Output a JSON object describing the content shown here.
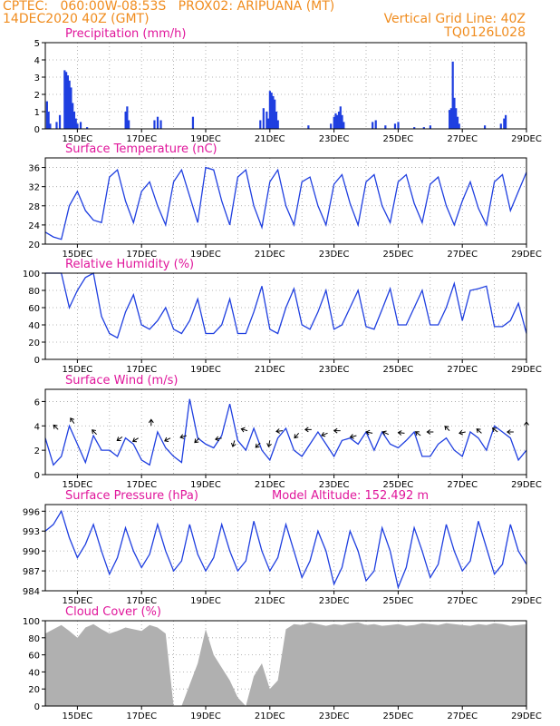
{
  "header": {
    "line1_left": "CPTEC:   060:00W-08:53S   PROX02: ARIPUANA (MT)",
    "line2_left": "14DEC2020 40Z (GMT)",
    "line2_right": "Vertical Grid Line: 40Z",
    "line3_right": "TQ0126L028"
  },
  "colors": {
    "header": "#f08c1e",
    "title": "#e0169b",
    "series": "#1f3fe0",
    "cloud": "#b0b0b0",
    "grid": "#a0a0a0",
    "arrow": "#000000"
  },
  "x_tick_labels": [
    "15DEC",
    "17DEC",
    "19DEC",
    "21DEC",
    "23DEC",
    "25DEC",
    "27DEC",
    "29DEC"
  ],
  "chart_data": [
    {
      "id": "precip",
      "type": "bar",
      "title": "Precipitation (mm/h)",
      "ylim": [
        0,
        5
      ],
      "yticks": [
        0,
        1,
        2,
        3,
        4,
        5
      ],
      "xlim": [
        14.0,
        29.0
      ],
      "points": [
        [
          14.05,
          1.6
        ],
        [
          14.1,
          1.0
        ],
        [
          14.15,
          0.3
        ],
        [
          14.35,
          0.4
        ],
        [
          14.45,
          0.8
        ],
        [
          14.6,
          3.4
        ],
        [
          14.65,
          3.3
        ],
        [
          14.7,
          3.1
        ],
        [
          14.75,
          2.8
        ],
        [
          14.8,
          2.4
        ],
        [
          14.85,
          1.5
        ],
        [
          14.9,
          1.0
        ],
        [
          14.95,
          0.6
        ],
        [
          15.0,
          0.3
        ],
        [
          15.1,
          0.4
        ],
        [
          15.3,
          0.1
        ],
        [
          16.5,
          1.0
        ],
        [
          16.55,
          1.3
        ],
        [
          16.6,
          0.5
        ],
        [
          17.4,
          0.5
        ],
        [
          17.5,
          0.7
        ],
        [
          17.6,
          0.5
        ],
        [
          18.6,
          0.7
        ],
        [
          20.7,
          0.5
        ],
        [
          20.8,
          1.2
        ],
        [
          20.9,
          1.0
        ],
        [
          20.95,
          0.6
        ],
        [
          21.0,
          2.2
        ],
        [
          21.05,
          2.1
        ],
        [
          21.1,
          1.9
        ],
        [
          21.15,
          1.7
        ],
        [
          21.2,
          1.0
        ],
        [
          21.25,
          0.5
        ],
        [
          22.2,
          0.2
        ],
        [
          22.9,
          0.3
        ],
        [
          23.0,
          0.7
        ],
        [
          23.05,
          0.9
        ],
        [
          23.1,
          0.8
        ],
        [
          23.15,
          1.0
        ],
        [
          23.2,
          1.3
        ],
        [
          23.25,
          0.8
        ],
        [
          23.3,
          0.4
        ],
        [
          24.2,
          0.4
        ],
        [
          24.3,
          0.5
        ],
        [
          24.6,
          0.2
        ],
        [
          24.9,
          0.3
        ],
        [
          25.0,
          0.4
        ],
        [
          25.5,
          0.1
        ],
        [
          25.8,
          0.1
        ],
        [
          26.0,
          0.2
        ],
        [
          26.6,
          1.1
        ],
        [
          26.65,
          1.2
        ],
        [
          26.7,
          3.9
        ],
        [
          26.75,
          1.8
        ],
        [
          26.8,
          1.2
        ],
        [
          26.85,
          0.7
        ],
        [
          26.9,
          0.3
        ],
        [
          27.7,
          0.2
        ],
        [
          28.2,
          0.3
        ],
        [
          28.3,
          0.6
        ],
        [
          28.35,
          0.8
        ]
      ]
    },
    {
      "id": "temp",
      "type": "line",
      "title": "Surface Temperature (nC)",
      "ylim": [
        20,
        38
      ],
      "yticks": [
        20,
        24,
        28,
        32,
        36
      ],
      "xlim": [
        14.0,
        29.0
      ],
      "x": [
        14.0,
        14.25,
        14.5,
        14.75,
        15.0,
        15.25,
        15.5,
        15.75,
        16.0,
        16.25,
        16.5,
        16.75,
        17.0,
        17.25,
        17.5,
        17.75,
        18.0,
        18.25,
        18.5,
        18.75,
        19.0,
        19.25,
        19.5,
        19.75,
        20.0,
        20.25,
        20.5,
        20.75,
        21.0,
        21.25,
        21.5,
        21.75,
        22.0,
        22.25,
        22.5,
        22.75,
        23.0,
        23.25,
        23.5,
        23.75,
        24.0,
        24.25,
        24.5,
        24.75,
        25.0,
        25.25,
        25.5,
        25.75,
        26.0,
        26.25,
        26.5,
        26.75,
        27.0,
        27.25,
        27.5,
        27.75,
        28.0,
        28.25,
        28.5,
        28.75,
        29.0
      ],
      "y": [
        22.5,
        21.5,
        21.0,
        28.0,
        31.0,
        27.0,
        25.0,
        24.5,
        34.0,
        35.5,
        29.0,
        24.5,
        31.0,
        33.0,
        28.0,
        24.0,
        33.0,
        35.5,
        30.0,
        24.5,
        36.0,
        35.5,
        29.0,
        24.0,
        34.0,
        35.5,
        28.0,
        23.5,
        33.0,
        35.5,
        28.0,
        24.0,
        33.0,
        34.0,
        28.0,
        24.0,
        32.5,
        34.5,
        28.5,
        24.0,
        33.0,
        34.5,
        28.0,
        24.5,
        33.0,
        34.5,
        28.5,
        24.5,
        32.5,
        34.0,
        28.0,
        24.0,
        29.0,
        33.0,
        27.5,
        24.0,
        33.0,
        34.5,
        27.0,
        31.0,
        35.0
      ]
    },
    {
      "id": "rh",
      "type": "line",
      "title": "Relative Humidity (%)",
      "ylim": [
        0,
        100
      ],
      "yticks": [
        0,
        20,
        40,
        60,
        80,
        100
      ],
      "xlim": [
        14.0,
        29.0
      ],
      "x": [
        14.0,
        14.25,
        14.5,
        14.75,
        15.0,
        15.25,
        15.5,
        15.75,
        16.0,
        16.25,
        16.5,
        16.75,
        17.0,
        17.25,
        17.5,
        17.75,
        18.0,
        18.25,
        18.5,
        18.75,
        19.0,
        19.25,
        19.5,
        19.75,
        20.0,
        20.25,
        20.5,
        20.75,
        21.0,
        21.25,
        21.5,
        21.75,
        22.0,
        22.25,
        22.5,
        22.75,
        23.0,
        23.25,
        23.5,
        23.75,
        24.0,
        24.25,
        24.5,
        24.75,
        25.0,
        25.25,
        25.5,
        25.75,
        26.0,
        26.25,
        26.5,
        26.75,
        27.0,
        27.25,
        27.5,
        27.75,
        28.0,
        28.25,
        28.5,
        28.75,
        29.0
      ],
      "y": [
        100,
        100,
        100,
        60,
        80,
        95,
        100,
        50,
        30,
        25,
        55,
        75,
        40,
        35,
        45,
        60,
        35,
        30,
        45,
        70,
        30,
        30,
        40,
        70,
        30,
        30,
        55,
        85,
        35,
        30,
        60,
        82,
        40,
        35,
        55,
        80,
        35,
        40,
        60,
        80,
        38,
        35,
        58,
        82,
        40,
        40,
        60,
        80,
        40,
        40,
        60,
        88,
        45,
        80,
        82,
        85,
        38,
        38,
        45,
        65,
        30
      ]
    },
    {
      "id": "wind",
      "type": "line",
      "title": "Surface Wind (m/s)",
      "ylim": [
        0,
        7
      ],
      "yticks": [
        0,
        2,
        4,
        6
      ],
      "xlim": [
        14.0,
        29.0
      ],
      "x": [
        14.0,
        14.25,
        14.5,
        14.75,
        15.0,
        15.25,
        15.5,
        15.75,
        16.0,
        16.25,
        16.5,
        16.75,
        17.0,
        17.25,
        17.5,
        17.75,
        18.0,
        18.25,
        18.5,
        18.75,
        19.0,
        19.25,
        19.5,
        19.75,
        20.0,
        20.25,
        20.5,
        20.75,
        21.0,
        21.25,
        21.5,
        21.75,
        22.0,
        22.25,
        22.5,
        22.75,
        23.0,
        23.25,
        23.5,
        23.75,
        24.0,
        24.25,
        24.5,
        24.75,
        25.0,
        25.25,
        25.5,
        25.75,
        26.0,
        26.25,
        26.5,
        26.75,
        27.0,
        27.25,
        27.5,
        27.75,
        28.0,
        28.25,
        28.5,
        28.75,
        29.0
      ],
      "y": [
        3.0,
        0.8,
        1.5,
        4.0,
        2.5,
        1.0,
        3.2,
        2.0,
        2.0,
        1.5,
        3.0,
        2.5,
        1.2,
        0.8,
        3.5,
        2.2,
        1.5,
        1.0,
        6.2,
        3.0,
        2.5,
        2.2,
        3.2,
        5.8,
        2.8,
        2.0,
        3.8,
        2.0,
        1.2,
        3.0,
        3.8,
        2.0,
        1.5,
        2.5,
        3.5,
        2.5,
        1.5,
        2.8,
        3.0,
        2.5,
        3.5,
        2.0,
        3.5,
        2.5,
        2.2,
        2.8,
        3.5,
        1.5,
        1.5,
        2.5,
        3.0,
        2.0,
        1.5,
        3.5,
        3.0,
        2.0,
        4.0,
        3.5,
        3.0,
        1.2,
        2.0
      ],
      "arrows": [
        [
          14.4,
          3.7,
          -1,
          1
        ],
        [
          14.9,
          4.2,
          -0.7,
          1
        ],
        [
          15.6,
          3.3,
          -0.8,
          0.8
        ],
        [
          16.4,
          3.1,
          -0.7,
          -0.5
        ],
        [
          16.9,
          3.0,
          -0.8,
          -0.5
        ],
        [
          17.3,
          4.0,
          0,
          1
        ],
        [
          17.9,
          3.0,
          -0.8,
          -0.4
        ],
        [
          18.4,
          3.2,
          -1,
          -0.3
        ],
        [
          18.8,
          3.0,
          -0.6,
          -0.6
        ],
        [
          19.5,
          3.0,
          -1,
          -0.2
        ],
        [
          19.9,
          2.8,
          -0.3,
          -1
        ],
        [
          20.3,
          3.6,
          -1,
          0.3
        ],
        [
          20.7,
          2.6,
          -0.7,
          -0.7
        ],
        [
          21.0,
          2.8,
          -0.2,
          -1
        ],
        [
          21.4,
          3.6,
          -1,
          -0.1
        ],
        [
          21.9,
          3.4,
          -0.7,
          -0.8
        ],
        [
          22.3,
          3.7,
          -1,
          0
        ],
        [
          22.8,
          3.4,
          -0.8,
          -0.3
        ],
        [
          23.2,
          3.6,
          -1,
          0
        ],
        [
          23.7,
          3.2,
          -0.8,
          -0.2
        ],
        [
          24.2,
          3.4,
          -1,
          0.2
        ],
        [
          24.7,
          3.3,
          -0.9,
          0.4
        ],
        [
          25.2,
          3.4,
          -1,
          0.1
        ],
        [
          25.7,
          3.2,
          -0.8,
          0.6
        ],
        [
          26.1,
          3.5,
          -1,
          0
        ],
        [
          26.6,
          3.6,
          -0.7,
          0.7
        ],
        [
          27.1,
          3.5,
          -1,
          -0.2
        ],
        [
          27.6,
          3.4,
          -0.8,
          0.7
        ],
        [
          28.1,
          3.5,
          -0.8,
          0.6
        ],
        [
          28.6,
          3.5,
          -1,
          0
        ],
        [
          29.0,
          3.8,
          0,
          1
        ]
      ]
    },
    {
      "id": "press",
      "type": "line",
      "title": "Surface Pressure (hPa)",
      "annotation": "Model Altitude: 152.492  m",
      "ylim": [
        984,
        997
      ],
      "yticks": [
        984,
        987,
        990,
        993,
        996
      ],
      "xlim": [
        14.0,
        29.0
      ],
      "x": [
        14.0,
        14.25,
        14.5,
        14.75,
        15.0,
        15.25,
        15.5,
        15.75,
        16.0,
        16.25,
        16.5,
        16.75,
        17.0,
        17.25,
        17.5,
        17.75,
        18.0,
        18.25,
        18.5,
        18.75,
        19.0,
        19.25,
        19.5,
        19.75,
        20.0,
        20.25,
        20.5,
        20.75,
        21.0,
        21.25,
        21.5,
        21.75,
        22.0,
        22.25,
        22.5,
        22.75,
        23.0,
        23.25,
        23.5,
        23.75,
        24.0,
        24.25,
        24.5,
        24.75,
        25.0,
        25.25,
        25.5,
        25.75,
        26.0,
        26.25,
        26.5,
        26.75,
        27.0,
        27.25,
        27.5,
        27.75,
        28.0,
        28.25,
        28.5,
        28.75,
        29.0
      ],
      "y": [
        993.0,
        994.0,
        996.0,
        992.0,
        989.0,
        991.0,
        994.0,
        990.0,
        986.5,
        989.0,
        993.5,
        990.0,
        987.5,
        989.5,
        994.0,
        990.0,
        987.0,
        988.5,
        994.0,
        989.5,
        987.0,
        989.0,
        994.0,
        990.0,
        987.0,
        988.5,
        994.5,
        990.0,
        987.0,
        989.0,
        994.0,
        990.0,
        986.0,
        988.5,
        993.0,
        990.0,
        985.0,
        987.5,
        993.0,
        990.0,
        985.5,
        987.0,
        993.5,
        990.0,
        984.5,
        987.5,
        993.5,
        990.0,
        986.0,
        988.0,
        994.0,
        990.0,
        987.0,
        988.5,
        994.5,
        990.5,
        986.5,
        988.0,
        994.0,
        990.0,
        988.0
      ]
    },
    {
      "id": "cloud",
      "type": "area",
      "title": "Cloud Cover (%)",
      "ylim": [
        0,
        100
      ],
      "yticks": [
        0,
        20,
        40,
        60,
        80,
        100
      ],
      "xlim": [
        14.0,
        29.0
      ],
      "x": [
        14.0,
        14.25,
        14.5,
        14.75,
        15.0,
        15.25,
        15.5,
        15.75,
        16.0,
        16.25,
        16.5,
        16.75,
        17.0,
        17.25,
        17.5,
        17.75,
        18.0,
        18.25,
        18.5,
        18.75,
        19.0,
        19.25,
        19.5,
        19.75,
        20.0,
        20.25,
        20.5,
        20.75,
        21.0,
        21.25,
        21.5,
        21.75,
        22.0,
        22.25,
        22.5,
        22.75,
        23.0,
        23.25,
        23.5,
        23.75,
        24.0,
        24.25,
        24.5,
        24.75,
        25.0,
        25.25,
        25.5,
        25.75,
        26.0,
        26.25,
        26.5,
        26.75,
        27.0,
        27.25,
        27.5,
        27.75,
        28.0,
        28.25,
        28.5,
        28.75,
        29.0
      ],
      "y": [
        85,
        90,
        95,
        88,
        80,
        92,
        96,
        90,
        85,
        88,
        92,
        90,
        88,
        95,
        92,
        85,
        0,
        0,
        25,
        50,
        90,
        60,
        45,
        30,
        10,
        0,
        35,
        50,
        20,
        30,
        90,
        96,
        95,
        98,
        96,
        94,
        96,
        95,
        97,
        98,
        95,
        96,
        94,
        95,
        96,
        94,
        95,
        97,
        96,
        95,
        97,
        96,
        95,
        94,
        96,
        95,
        97,
        96,
        94,
        95,
        96
      ]
    }
  ]
}
